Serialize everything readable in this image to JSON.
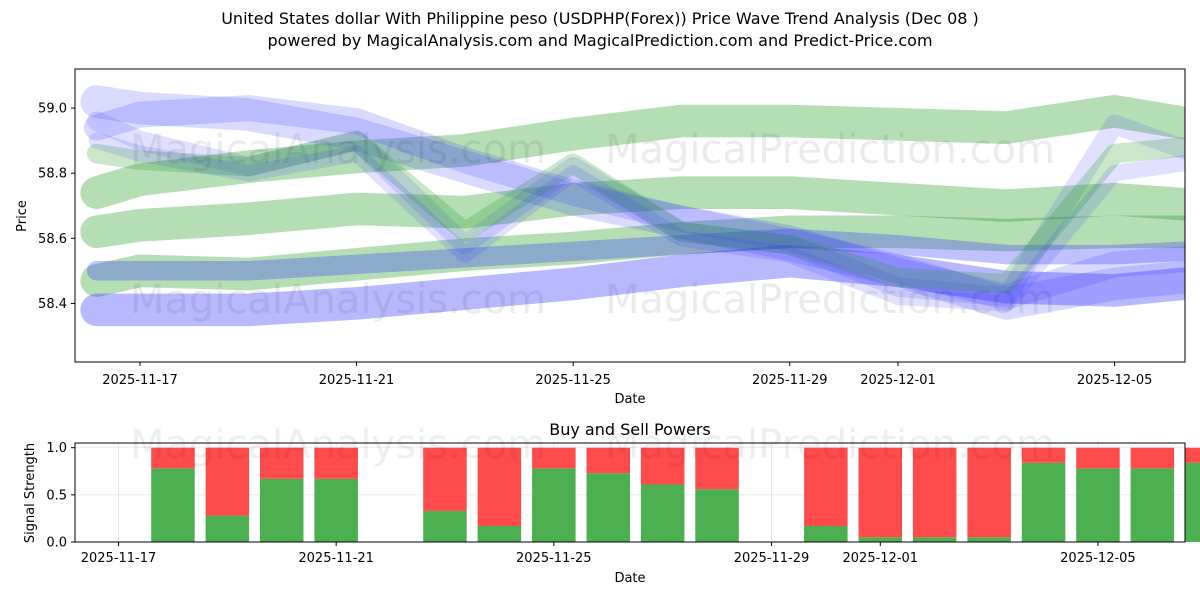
{
  "title_line1": "United States dollar With Philippine peso (USDPHP(Forex)) Price Wave Trend Analysis (Dec 08 )",
  "title_line2": "powered by MagicalAnalysis.com and MagicalPrediction.com and Predict-Price.com",
  "watermarks": [
    "MagicalAnalysis.com",
    "MagicalPrediction.com",
    "MagicalAnalysis.com",
    "MagicalPrediction.com",
    "MagicalAnalysis.com",
    "MagicalPrediction.com"
  ],
  "colors": {
    "green_band": "#2ca02c",
    "blue_band": "#3333ff",
    "buy": "#4caf50",
    "sell": "#ff4b4b"
  },
  "chart_data": [
    {
      "type": "area",
      "title": "",
      "xlabel": "Date",
      "ylabel": "Price",
      "ylim": [
        58.22,
        59.12
      ],
      "yticks": [
        "58.4",
        "58.6",
        "58.8",
        "59.0"
      ],
      "xlim_days": [
        -1.2,
        19.3
      ],
      "x_origin": "2025-11-17",
      "xticks": [
        "2025-11-17",
        "2025-11-21",
        "2025-11-25",
        "2025-11-29",
        "2025-12-01",
        "2025-12-05"
      ],
      "xtick_days": [
        0,
        4,
        8,
        12,
        14,
        18
      ],
      "bands": [
        {
          "color": "green",
          "opacity": 0.35,
          "width": 0.1,
          "x": [
            -0.8,
            0,
            2,
            4,
            6,
            8,
            10,
            12,
            14,
            16,
            18,
            20.5
          ],
          "y": [
            58.47,
            58.5,
            58.49,
            58.52,
            58.55,
            58.57,
            58.6,
            58.62,
            58.62,
            58.61,
            58.62,
            58.62
          ]
        },
        {
          "color": "green",
          "opacity": 0.35,
          "width": 0.1,
          "x": [
            -0.8,
            0,
            2,
            4,
            6,
            8,
            10,
            12,
            14,
            16,
            18,
            20.5
          ],
          "y": [
            58.74,
            58.78,
            58.82,
            58.85,
            58.87,
            58.92,
            58.96,
            58.96,
            58.95,
            58.94,
            58.99,
            58.92
          ]
        },
        {
          "color": "green",
          "opacity": 0.35,
          "width": 0.1,
          "x": [
            -0.8,
            0,
            2,
            4,
            6,
            8,
            10,
            12,
            14,
            16,
            18,
            20.5
          ],
          "y": [
            58.62,
            58.64,
            58.66,
            58.69,
            58.68,
            58.72,
            58.74,
            58.74,
            58.72,
            58.7,
            58.72,
            58.69
          ]
        },
        {
          "color": "blue",
          "opacity": 0.35,
          "width": 0.1,
          "x": [
            -0.8,
            0,
            2,
            4,
            6,
            8,
            10,
            12,
            14,
            16,
            18,
            20.5
          ],
          "y": [
            58.38,
            58.38,
            58.38,
            58.4,
            58.43,
            58.46,
            58.5,
            58.53,
            58.5,
            58.45,
            58.44,
            58.48
          ]
        },
        {
          "color": "blue",
          "opacity": 0.3,
          "width": 0.06,
          "x": [
            -0.8,
            0,
            2,
            4,
            6,
            8,
            10,
            12,
            14,
            16,
            18,
            20.5
          ],
          "y": [
            58.5,
            58.5,
            58.5,
            58.52,
            58.54,
            58.56,
            58.58,
            58.6,
            58.58,
            58.55,
            58.55,
            58.57
          ]
        },
        {
          "color": "blue",
          "opacity": 0.18,
          "width": 0.1,
          "x": [
            -0.8,
            0,
            2,
            4,
            6,
            8,
            10,
            12,
            14,
            16,
            18,
            20.5
          ],
          "y": [
            59.02,
            59.0,
            58.98,
            58.92,
            58.82,
            58.72,
            58.65,
            58.58,
            58.5,
            58.4,
            58.46,
            58.5
          ]
        },
        {
          "color": "blue",
          "opacity": 0.18,
          "width": 0.08,
          "x": [
            -0.8,
            0,
            2,
            4,
            6,
            8,
            10,
            12,
            14,
            16,
            18,
            20.5
          ],
          "y": [
            58.94,
            58.98,
            59.0,
            58.96,
            58.84,
            58.74,
            58.66,
            58.6,
            58.5,
            58.42,
            58.52,
            58.55
          ]
        },
        {
          "color": "blue",
          "opacity": 0.15,
          "width": 0.06,
          "x": [
            -0.8,
            0,
            2,
            4,
            6,
            8,
            10,
            12,
            14,
            16,
            18,
            20.5
          ],
          "y": [
            58.96,
            58.9,
            58.82,
            58.9,
            58.58,
            58.82,
            58.62,
            58.58,
            58.45,
            58.42,
            58.95,
            58.8
          ]
        },
        {
          "color": "green",
          "opacity": 0.25,
          "width": 0.06,
          "x": [
            -0.8,
            0,
            2,
            4,
            6,
            8,
            10,
            12,
            14,
            16,
            18,
            20.5
          ],
          "y": [
            58.86,
            58.84,
            58.82,
            58.9,
            58.62,
            58.83,
            58.62,
            58.58,
            58.48,
            58.46,
            58.86,
            58.9
          ]
        },
        {
          "color": "blue",
          "opacity": 0.15,
          "width": 0.05,
          "x": [
            -0.8,
            0,
            2,
            4,
            6,
            8,
            10,
            12,
            14,
            16,
            18,
            20.5
          ],
          "y": [
            58.9,
            58.86,
            58.8,
            58.86,
            58.55,
            58.8,
            58.6,
            58.55,
            58.42,
            58.4,
            58.8,
            58.86
          ]
        }
      ]
    },
    {
      "type": "bar",
      "title": "Buy and Sell Powers",
      "xlabel": "Date",
      "ylabel": "Signal Strength",
      "ylim": [
        0,
        1.05
      ],
      "yticks": [
        "0.0",
        "0.5",
        "1.0"
      ],
      "xlim_days": [
        -0.8,
        19.6
      ],
      "xticks": [
        "2025-11-17",
        "2025-11-21",
        "2025-11-25",
        "2025-11-29",
        "2025-12-01",
        "2025-12-05"
      ],
      "xtick_days": [
        0,
        4,
        8,
        12,
        14,
        18
      ],
      "series": [
        {
          "name": "Buy",
          "days": [
            1,
            2,
            3,
            4,
            6,
            7,
            8,
            9,
            10,
            11,
            13,
            14,
            15,
            16,
            17,
            18,
            19,
            20
          ],
          "values": [
            0.78,
            0.28,
            0.67,
            0.67,
            0.33,
            0.17,
            0.78,
            0.73,
            0.61,
            0.56,
            0.17,
            0.05,
            0.05,
            0.05,
            0.84,
            0.78,
            0.78,
            0.84
          ]
        },
        {
          "name": "Sell",
          "days": [
            1,
            2,
            3,
            4,
            6,
            7,
            8,
            9,
            10,
            11,
            13,
            14,
            15,
            16,
            17,
            18,
            19,
            20
          ],
          "values": [
            0.22,
            0.72,
            0.33,
            0.33,
            0.67,
            0.83,
            0.22,
            0.27,
            0.39,
            0.44,
            0.83,
            0.95,
            0.95,
            0.95,
            0.16,
            0.22,
            0.22,
            0.16
          ]
        }
      ]
    }
  ]
}
